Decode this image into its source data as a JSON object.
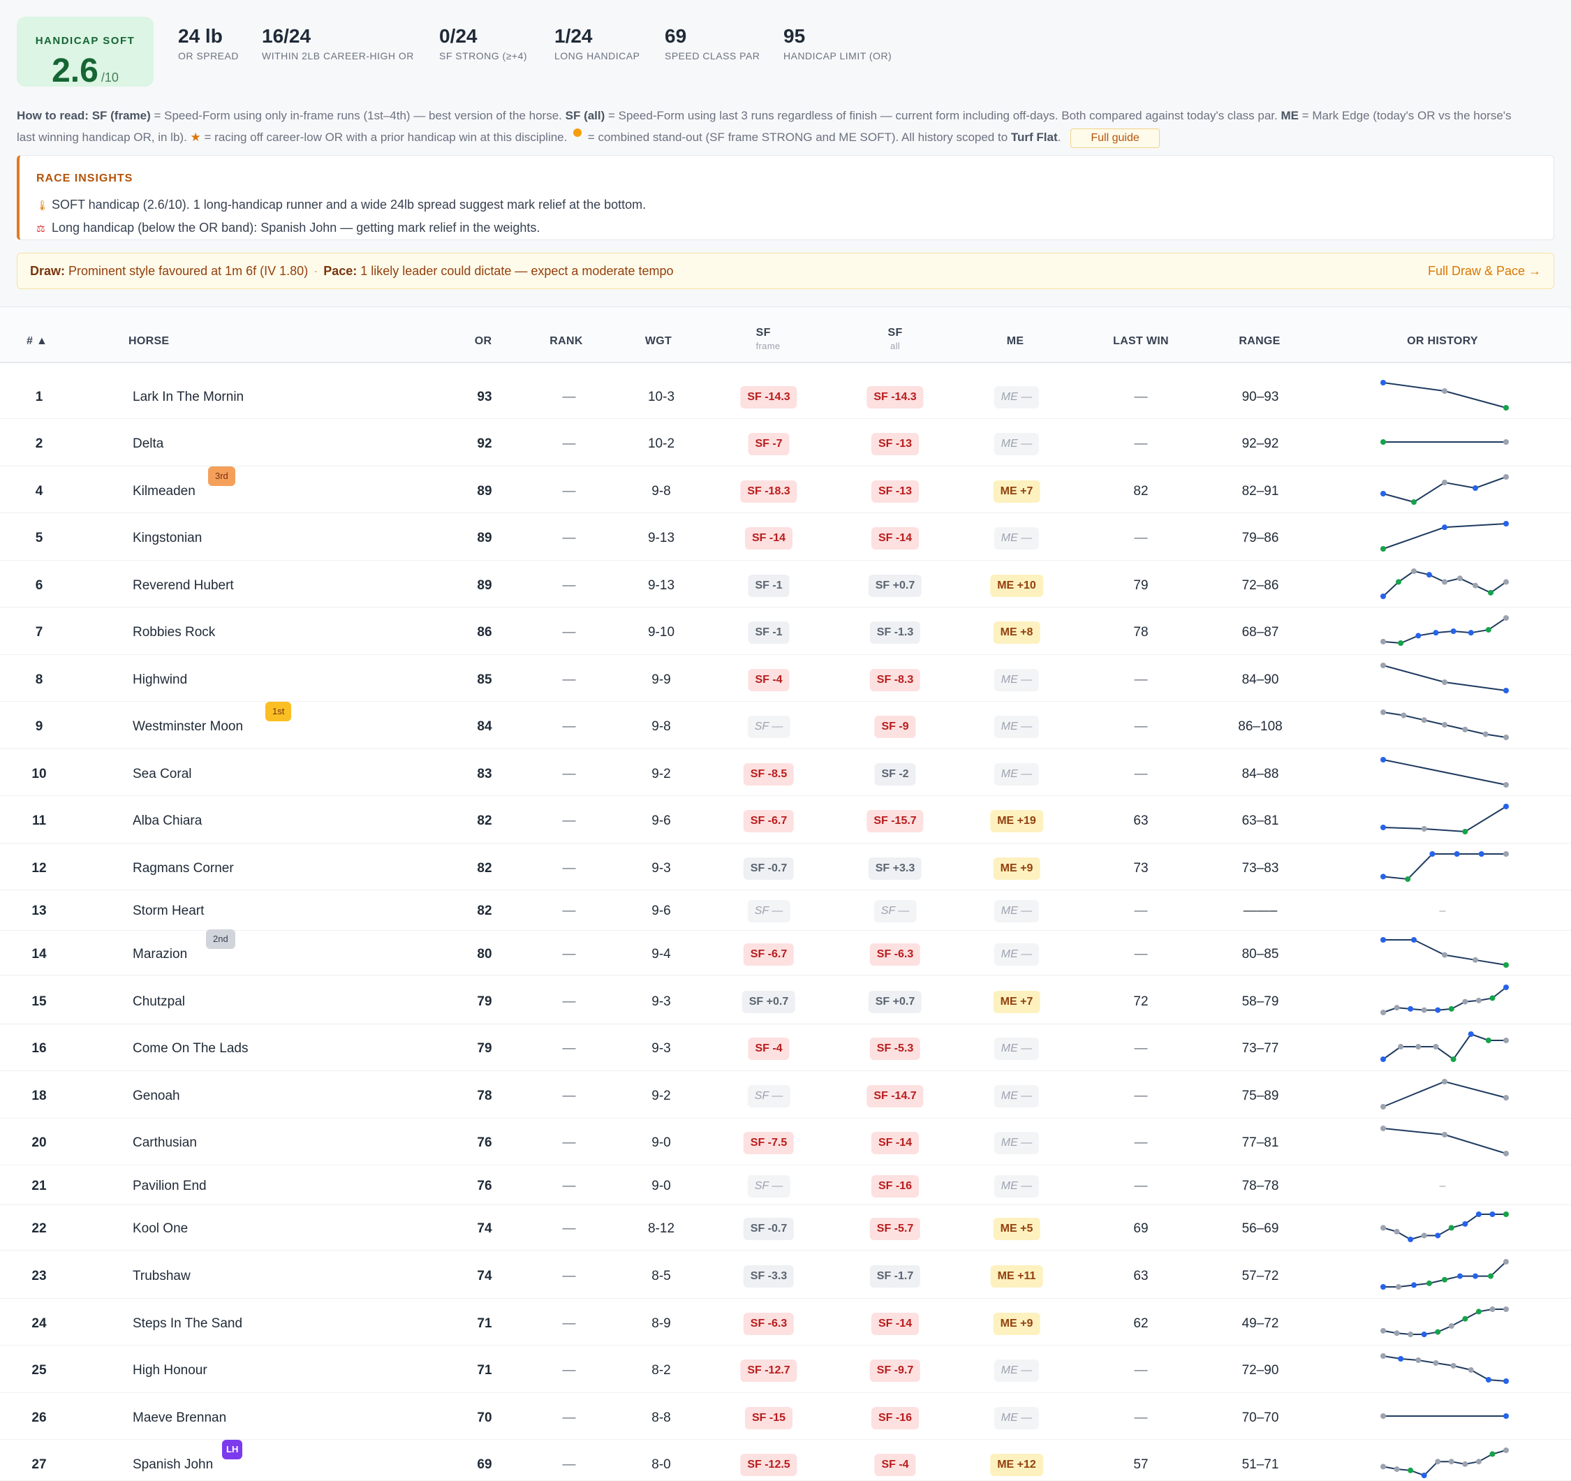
{
  "summary": {
    "card_label": "HANDICAP SOFT",
    "card_value": "2.6",
    "card_suffix": "/10",
    "stats": [
      {
        "value": "24 lb",
        "label": "OR SPREAD"
      },
      {
        "value": "16/24",
        "label": "WITHIN 2LB CAREER-HIGH OR"
      },
      {
        "value": "0/24",
        "label": "SF STRONG (≥+4)"
      },
      {
        "value": "1/24",
        "label": "LONG HANDICAP"
      },
      {
        "value": "69",
        "label": "SPEED CLASS PAR"
      },
      {
        "value": "95",
        "label": "HANDICAP LIMIT (OR)"
      }
    ]
  },
  "howto": {
    "lead": "How to read:",
    "sf_frame": "SF (frame)",
    "t1": " = Speed-Form using only in-frame runs (1st–4th) — best version of the horse. ",
    "sf_all": "SF (all)",
    "t2": " = Speed-Form using last 3 runs regardless of finish — current form including off-days. Both compared against today's class par. ",
    "me": "ME",
    "t3": " = Mark Edge (today's OR vs the horse's last winning handicap OR, in lb). ",
    "star": "★",
    "t4": " = racing off career-low OR with a prior handicap win at this discipline. ",
    "t5": " = combined stand-out (SF frame STRONG and ME SOFT). All history scoped to ",
    "scope": "Turf Flat",
    "t6": ".",
    "guide": "Full guide"
  },
  "insights": {
    "title": "RACE INSIGHTS",
    "items": [
      {
        "icon": "thermometer-icon",
        "text": "SOFT handicap (2.6/10). 1 long-handicap runner and a wide 24lb spread suggest mark relief at the bottom."
      },
      {
        "icon": "weights-icon",
        "text": "Long handicap (below the OR band): Spanish John — getting mark relief in the weights."
      }
    ]
  },
  "drawpace": {
    "draw_label": "Draw:",
    "draw_text": "Prominent style favoured at 1m 6f (IV 1.80)",
    "sep": "·",
    "pace_label": "Pace:",
    "pace_text": "1 likely leader could dictate — expect a moderate tempo",
    "link": "Full Draw & Pace →"
  },
  "table": {
    "headers": {
      "num": "# ▲",
      "horse": "HORSE",
      "or": "OR",
      "rank": "RANK",
      "wgt": "WGT",
      "sf": "SF",
      "sf_frame_sub": "frame",
      "sf_all_sub": "all",
      "me": "ME",
      "lastwin": "LAST WIN",
      "range": "RANGE",
      "history": "OR HISTORY"
    },
    "rows": [
      {
        "num": "1",
        "horse": "Lark In The Mornin",
        "badge": null,
        "or": "93",
        "rank": "—",
        "wgt": "10-3",
        "sff": "SF -14.3",
        "sffc": "red",
        "sfa": "SF -14.3",
        "sfac": "red",
        "me": "ME —",
        "mec": "nil",
        "lastwin": "—",
        "range": "90–93",
        "hist": [
          93,
          92,
          90
        ],
        "dots": [
          "blue",
          "grey",
          "green"
        ]
      },
      {
        "num": "2",
        "horse": "Delta",
        "badge": null,
        "or": "92",
        "rank": "—",
        "wgt": "10-2",
        "sff": "SF -7",
        "sffc": "red",
        "sfa": "SF -13",
        "sfac": "red",
        "me": "ME —",
        "mec": "nil",
        "lastwin": "—",
        "range": "92–92",
        "hist": [
          92,
          92
        ],
        "dots": [
          "green",
          "grey"
        ]
      },
      {
        "num": "4",
        "horse": "Kilmeaden",
        "badge": "3rd",
        "or": "89",
        "rank": "—",
        "wgt": "9-8",
        "sff": "SF -18.3",
        "sffc": "red",
        "sfa": "SF -13",
        "sfac": "red",
        "me": "ME +7",
        "mec": "yel",
        "lastwin": "82",
        "range": "82–91",
        "hist": [
          85,
          82,
          89,
          87,
          91
        ],
        "dots": [
          "blue",
          "green",
          "grey",
          "blue",
          "grey"
        ]
      },
      {
        "num": "5",
        "horse": "Kingstonian",
        "badge": null,
        "or": "89",
        "rank": "—",
        "wgt": "9-13",
        "sff": "SF -14",
        "sffc": "red",
        "sfa": "SF -14",
        "sfac": "red",
        "me": "ME —",
        "mec": "nil",
        "lastwin": "—",
        "range": "79–86",
        "hist": [
          79,
          85,
          86
        ],
        "dots": [
          "green",
          "blue",
          "blue"
        ]
      },
      {
        "num": "6",
        "horse": "Reverend Hubert",
        "badge": null,
        "or": "89",
        "rank": "—",
        "wgt": "9-13",
        "sff": "SF -1",
        "sffc": "grey",
        "sfa": "SF +0.7",
        "sfac": "grey",
        "me": "ME +10",
        "mec": "yel",
        "lastwin": "79",
        "range": "72–86",
        "hist": [
          72,
          80,
          86,
          84,
          80,
          82,
          78,
          74,
          80
        ],
        "dots": [
          "blue",
          "green",
          "grey",
          "blue",
          "grey",
          "grey",
          "grey",
          "green",
          "grey"
        ]
      },
      {
        "num": "7",
        "horse": "Robbies Rock",
        "badge": null,
        "or": "86",
        "rank": "—",
        "wgt": "9-10",
        "sff": "SF -1",
        "sffc": "grey",
        "sfa": "SF -1.3",
        "sfac": "grey",
        "me": "ME +8",
        "mec": "yel",
        "lastwin": "78",
        "range": "68–87",
        "hist": [
          71,
          70,
          75,
          77,
          78,
          77,
          79,
          87
        ],
        "dots": [
          "grey",
          "green",
          "blue",
          "blue",
          "blue",
          "blue",
          "green",
          "grey"
        ]
      },
      {
        "num": "8",
        "horse": "Highwind",
        "badge": null,
        "or": "85",
        "rank": "—",
        "wgt": "9-9",
        "sff": "SF -4",
        "sffc": "red",
        "sfa": "SF -8.3",
        "sfac": "red",
        "me": "ME —",
        "mec": "nil",
        "lastwin": "—",
        "range": "84–90",
        "hist": [
          90,
          86,
          84
        ],
        "dots": [
          "grey",
          "grey",
          "blue"
        ]
      },
      {
        "num": "9",
        "horse": "Westminster Moon",
        "badge": "1st",
        "or": "84",
        "rank": "—",
        "wgt": "9-8",
        "sff": "SF —",
        "sffc": "nil",
        "sfa": "SF -9",
        "sfac": "red",
        "me": "ME —",
        "mec": "nil",
        "lastwin": "—",
        "range": "86–108",
        "hist": [
          108,
          106,
          103,
          100,
          97,
          94,
          92
        ],
        "dots": [
          "grey",
          "grey",
          "grey",
          "grey",
          "grey",
          "grey",
          "grey"
        ]
      },
      {
        "num": "10",
        "horse": "Sea Coral",
        "badge": null,
        "or": "83",
        "rank": "—",
        "wgt": "9-2",
        "sff": "SF -8.5",
        "sffc": "red",
        "sfa": "SF -2",
        "sfac": "grey",
        "me": "ME —",
        "mec": "nil",
        "lastwin": "—",
        "range": "84–88",
        "hist": [
          88,
          84
        ],
        "dots": [
          "blue",
          "grey"
        ]
      },
      {
        "num": "11",
        "horse": "Alba Chiara",
        "badge": null,
        "or": "82",
        "rank": "—",
        "wgt": "9-6",
        "sff": "SF -6.7",
        "sffc": "red",
        "sfa": "SF -15.7",
        "sfac": "red",
        "me": "ME +19",
        "mec": "yel",
        "lastwin": "63",
        "range": "63–81",
        "hist": [
          66,
          65,
          63,
          81
        ],
        "dots": [
          "blue",
          "grey",
          "green",
          "blue"
        ]
      },
      {
        "num": "12",
        "horse": "Ragmans Corner",
        "badge": null,
        "or": "82",
        "rank": "—",
        "wgt": "9-3",
        "sff": "SF -0.7",
        "sffc": "grey",
        "sfa": "SF +3.3",
        "sfac": "grey",
        "me": "ME +9",
        "mec": "yel",
        "lastwin": "73",
        "range": "73–83",
        "hist": [
          74,
          73,
          83,
          83,
          83,
          83
        ],
        "dots": [
          "blue",
          "green",
          "blue",
          "blue",
          "blue",
          "grey"
        ]
      },
      {
        "num": "13",
        "horse": "Storm Heart",
        "badge": null,
        "or": "82",
        "rank": "—",
        "wgt": "9-6",
        "sff": "SF —",
        "sffc": "nil",
        "sfa": "SF —",
        "sfac": "nil",
        "me": "ME —",
        "mec": "nil",
        "lastwin": "—",
        "range": "——–",
        "hist": [],
        "dots": []
      },
      {
        "num": "14",
        "horse": "Marazion",
        "badge": "2nd",
        "or": "80",
        "rank": "—",
        "wgt": "9-4",
        "sff": "SF -6.7",
        "sffc": "red",
        "sfa": "SF -6.3",
        "sfac": "red",
        "me": "ME —",
        "mec": "nil",
        "lastwin": "—",
        "range": "80–85",
        "hist": [
          85,
          85,
          82,
          81,
          80
        ],
        "dots": [
          "blue",
          "blue",
          "grey",
          "grey",
          "green"
        ]
      },
      {
        "num": "15",
        "horse": "Chutzpal",
        "badge": null,
        "or": "79",
        "rank": "—",
        "wgt": "9-3",
        "sff": "SF +0.7",
        "sffc": "grey",
        "sfa": "SF +0.7",
        "sfac": "grey",
        "me": "ME +7",
        "mec": "yel",
        "lastwin": "72",
        "range": "58–79",
        "hist": [
          58,
          62,
          61,
          60,
          60,
          61,
          67,
          68,
          70,
          79
        ],
        "dots": [
          "grey",
          "grey",
          "blue",
          "grey",
          "blue",
          "green",
          "grey",
          "grey",
          "green",
          "blue"
        ]
      },
      {
        "num": "16",
        "horse": "Come On The Lads",
        "badge": null,
        "or": "79",
        "rank": "—",
        "wgt": "9-3",
        "sff": "SF -4",
        "sffc": "red",
        "sfa": "SF -5.3",
        "sfac": "red",
        "me": "ME —",
        "mec": "nil",
        "lastwin": "—",
        "range": "73–77",
        "hist": [
          73,
          75,
          75,
          75,
          73,
          77,
          76,
          76
        ],
        "dots": [
          "blue",
          "grey",
          "grey",
          "grey",
          "green",
          "blue",
          "green",
          "grey"
        ]
      },
      {
        "num": "18",
        "horse": "Genoah",
        "badge": null,
        "or": "78",
        "rank": "—",
        "wgt": "9-2",
        "sff": "SF —",
        "sffc": "nil",
        "sfa": "SF -14.7",
        "sfac": "red",
        "me": "ME —",
        "mec": "nil",
        "lastwin": "—",
        "range": "75–89",
        "hist": [
          75,
          89,
          80
        ],
        "dots": [
          "grey",
          "grey",
          "grey"
        ]
      },
      {
        "num": "20",
        "horse": "Carthusian",
        "badge": null,
        "or": "76",
        "rank": "—",
        "wgt": "9-0",
        "sff": "SF -7.5",
        "sffc": "red",
        "sfa": "SF -14",
        "sfac": "red",
        "me": "ME —",
        "mec": "nil",
        "lastwin": "—",
        "range": "77–81",
        "hist": [
          81,
          80,
          77
        ],
        "dots": [
          "grey",
          "grey",
          "grey"
        ]
      },
      {
        "num": "21",
        "horse": "Pavilion End",
        "badge": null,
        "or": "76",
        "rank": "—",
        "wgt": "9-0",
        "sff": "SF —",
        "sffc": "nil",
        "sfa": "SF -16",
        "sfac": "red",
        "me": "ME —",
        "mec": "nil",
        "lastwin": "—",
        "range": "78–78",
        "hist": [],
        "dots": []
      },
      {
        "num": "22",
        "horse": "Kool One",
        "badge": null,
        "or": "74",
        "rank": "—",
        "wgt": "8-12",
        "sff": "SF -0.7",
        "sffc": "grey",
        "sfa": "SF -5.7",
        "sfac": "red",
        "me": "ME +5",
        "mec": "yel",
        "lastwin": "69",
        "range": "56–69",
        "hist": [
          62,
          60,
          56,
          58,
          58,
          62,
          64,
          69,
          69,
          69
        ],
        "dots": [
          "grey",
          "grey",
          "blue",
          "grey",
          "blue",
          "green",
          "blue",
          "blue",
          "blue",
          "green"
        ]
      },
      {
        "num": "23",
        "horse": "Trubshaw",
        "badge": null,
        "or": "74",
        "rank": "—",
        "wgt": "8-5",
        "sff": "SF -3.3",
        "sffc": "grey",
        "sfa": "SF -1.7",
        "sfac": "grey",
        "me": "ME +11",
        "mec": "yel",
        "lastwin": "63",
        "range": "57–72",
        "hist": [
          58,
          58,
          59,
          60,
          62,
          64,
          64,
          64,
          72
        ],
        "dots": [
          "blue",
          "grey",
          "blue",
          "green",
          "green",
          "blue",
          "blue",
          "green",
          "grey"
        ]
      },
      {
        "num": "24",
        "horse": "Steps In The Sand",
        "badge": null,
        "or": "71",
        "rank": "—",
        "wgt": "8-9",
        "sff": "SF -6.3",
        "sffc": "red",
        "sfa": "SF -14",
        "sfac": "red",
        "me": "ME +9",
        "mec": "yel",
        "lastwin": "62",
        "range": "49–72",
        "hist": [
          54,
          52,
          51,
          51,
          53,
          58,
          64,
          70,
          72,
          72
        ],
        "dots": [
          "grey",
          "grey",
          "grey",
          "blue",
          "green",
          "grey",
          "green",
          "green",
          "grey",
          "grey"
        ]
      },
      {
        "num": "25",
        "horse": "High Honour",
        "badge": null,
        "or": "71",
        "rank": "—",
        "wgt": "8-2",
        "sff": "SF -12.7",
        "sffc": "red",
        "sfa": "SF -9.7",
        "sfac": "red",
        "me": "ME —",
        "mec": "nil",
        "lastwin": "—",
        "range": "72–90",
        "hist": [
          90,
          88,
          87,
          85,
          83,
          80,
          73,
          72
        ],
        "dots": [
          "grey",
          "blue",
          "grey",
          "grey",
          "grey",
          "grey",
          "blue",
          "blue"
        ]
      },
      {
        "num": "26",
        "horse": "Maeve Brennan",
        "badge": null,
        "or": "70",
        "rank": "—",
        "wgt": "8-8",
        "sff": "SF -15",
        "sffc": "red",
        "sfa": "SF -16",
        "sfac": "red",
        "me": "ME —",
        "mec": "nil",
        "lastwin": "—",
        "range": "70–70",
        "hist": [
          70,
          70
        ],
        "dots": [
          "grey",
          "blue"
        ]
      },
      {
        "num": "27",
        "horse": "Spanish John",
        "badge": "LH",
        "or": "69",
        "rank": "—",
        "wgt": "8-0",
        "sff": "SF -12.5",
        "sffc": "red",
        "sfa": "SF -4",
        "sfac": "red",
        "me": "ME +12",
        "mec": "yel",
        "lastwin": "57",
        "range": "51–71",
        "hist": [
          58,
          56,
          55,
          51,
          62,
          62,
          60,
          62,
          68,
          71
        ],
        "dots": [
          "grey",
          "grey",
          "green",
          "blue",
          "grey",
          "grey",
          "grey",
          "grey",
          "green",
          "grey"
        ]
      }
    ]
  },
  "colors": {
    "blue": "#2563eb",
    "green": "#16a34a",
    "grey": "#9ca3af",
    "line": "#1e3a5f"
  }
}
